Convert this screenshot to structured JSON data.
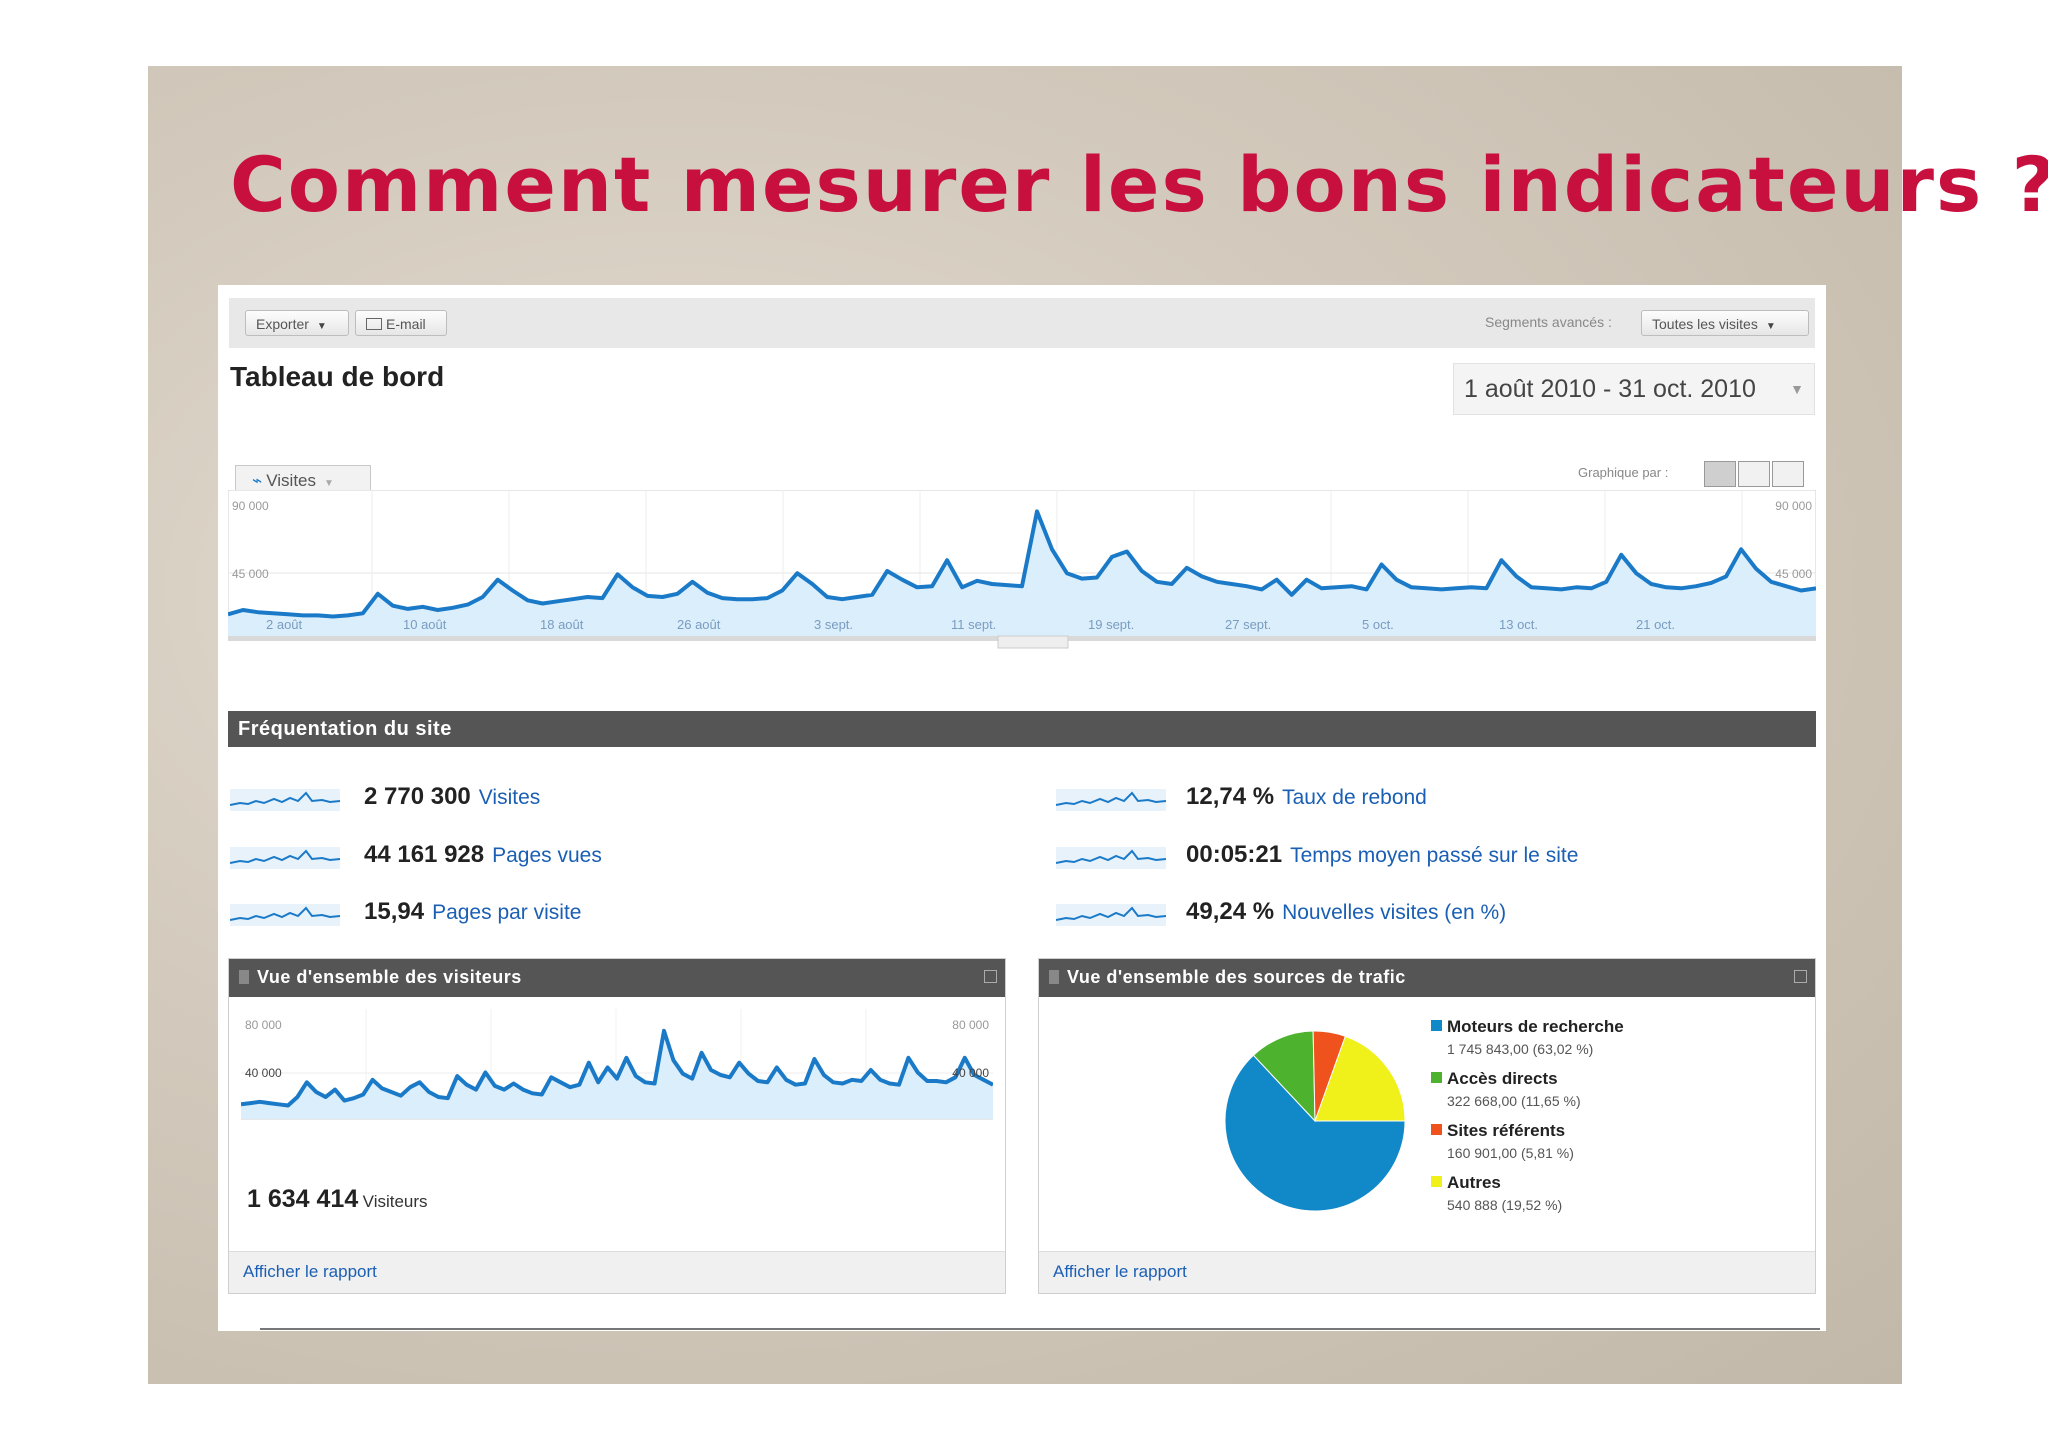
{
  "slide": {
    "title": "Comment mesurer les bons indicateurs ?"
  },
  "toolbar": {
    "export_label": "Exporter",
    "email_label": "E-mail",
    "segments_label": "Segments avancés :",
    "segments_value": "Toutes les visites"
  },
  "dashboard": {
    "title": "Tableau de bord",
    "date_range": "1 août 2010 - 31 oct. 2010"
  },
  "main_chart": {
    "tab_label": "Visites",
    "graph_by_label": "Graphique par :",
    "y_top": "90 000",
    "y_mid": "45 000",
    "x_labels": [
      "2 août",
      "10 août",
      "18 août",
      "26 août",
      "3 sept.",
      "11 sept.",
      "19 sept.",
      "27 sept.",
      "5 oct.",
      "13 oct.",
      "21 oct."
    ],
    "color": "#1a7ac8",
    "values": [
      20,
      24,
      22,
      21,
      20,
      19,
      19,
      18,
      19,
      21,
      39,
      28,
      25,
      27,
      24,
      26,
      29,
      36,
      52,
      42,
      33,
      30,
      32,
      34,
      36,
      35,
      57,
      45,
      37,
      36,
      39,
      50,
      40,
      35,
      34,
      34,
      35,
      42,
      58,
      48,
      36,
      34,
      36,
      38,
      60,
      52,
      45,
      46,
      70,
      45,
      51,
      48,
      47,
      46,
      115,
      80,
      58,
      53,
      54,
      73,
      78,
      60,
      50,
      48,
      63,
      55,
      50,
      48,
      46,
      43,
      52,
      38,
      52,
      44,
      45,
      46,
      43,
      66,
      52,
      45,
      44,
      43,
      44,
      45,
      44,
      70,
      55,
      45,
      44,
      43,
      45,
      44,
      50,
      75,
      58,
      48,
      45,
      44,
      46,
      49,
      55,
      80,
      62,
      50,
      46,
      42,
      44
    ]
  },
  "traffic": {
    "header": "Fréquentation du site",
    "metrics_left": [
      {
        "value": "2 770 300",
        "label": "Visites"
      },
      {
        "value": "44 161 928",
        "label": "Pages vues"
      },
      {
        "value": "15,94",
        "label": "Pages par visite"
      }
    ],
    "metrics_right": [
      {
        "value": "12,74 %",
        "label": "Taux de rebond"
      },
      {
        "value": "00:05:21",
        "label": "Temps moyen passé sur le site"
      },
      {
        "value": "49,24 %",
        "label": "Nouvelles visites (en %)"
      }
    ]
  },
  "visitors_panel": {
    "header": "Vue d'ensemble des visiteurs",
    "y_top": "80 000",
    "y_mid": "40 000",
    "visitors_value": "1 634 414",
    "visitors_label": "Visiteurs",
    "footer_link": "Afficher le rapport",
    "values": [
      12,
      13,
      14,
      13,
      12,
      11,
      18,
      30,
      22,
      18,
      24,
      15,
      17,
      20,
      32,
      25,
      22,
      19,
      26,
      30,
      22,
      18,
      17,
      35,
      28,
      24,
      38,
      27,
      24,
      29,
      24,
      21,
      20,
      34,
      30,
      26,
      28,
      46,
      30,
      42,
      33,
      50,
      35,
      30,
      29,
      72,
      48,
      37,
      33,
      54,
      40,
      36,
      34,
      46,
      37,
      31,
      30,
      42,
      32,
      28,
      29,
      49,
      36,
      30,
      29,
      32,
      31,
      40,
      32,
      29,
      28,
      50,
      38,
      31,
      31,
      30,
      34,
      50,
      36,
      32,
      28
    ]
  },
  "sources_panel": {
    "header": "Vue d'ensemble des sources de trafic",
    "footer_link": "Afficher le rapport",
    "legend": [
      {
        "label": "Moteurs de recherche",
        "detail": "1 745 843,00 (63,02 %)",
        "value": 63.02,
        "color": "#1189c9"
      },
      {
        "label": "Accès directs",
        "detail": "322 668,00 (11,65 %)",
        "value": 11.65,
        "color": "#4db32e"
      },
      {
        "label": "Sites référents",
        "detail": "160 901,00 (5,81 %)",
        "value": 5.81,
        "color": "#f0521d"
      },
      {
        "label": "Autres",
        "detail": "540 888 (19,52 %)",
        "value": 19.52,
        "color": "#f0f01a"
      }
    ]
  }
}
